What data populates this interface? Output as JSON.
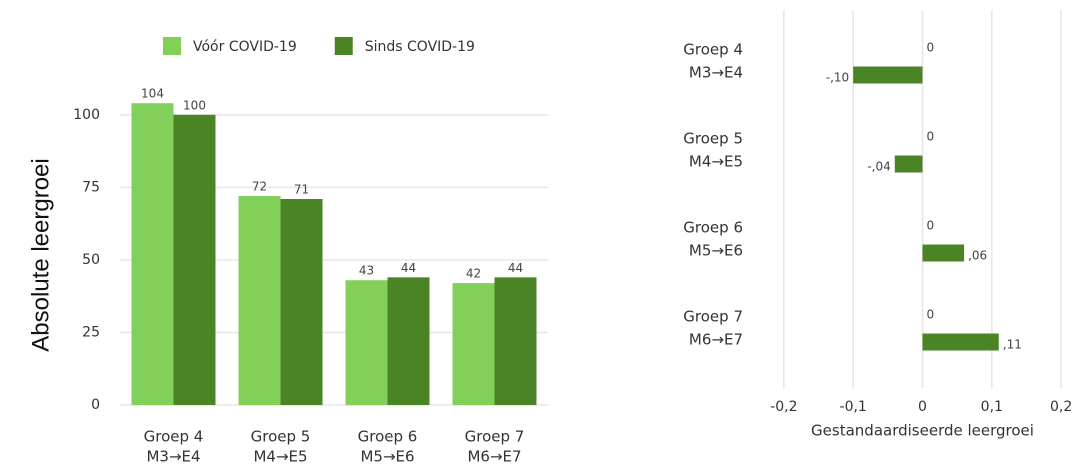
{
  "chart_data": [
    {
      "type": "bar",
      "categories": [
        [
          "Groep 4",
          "M3→E4"
        ],
        [
          "Groep 5",
          "M4→E5"
        ],
        [
          "Groep 6",
          "M5→E6"
        ],
        [
          "Groep 7",
          "M6→E7"
        ]
      ],
      "series": [
        {
          "name": "Vóór COVID-19",
          "color": "#82d05a",
          "values": [
            104,
            72,
            43,
            42
          ]
        },
        {
          "name": "Sinds COVID-19",
          "color": "#4a8425",
          "values": [
            100,
            71,
            44,
            44
          ]
        }
      ],
      "y_label": "Absolute leergroei",
      "ylim": [
        0,
        112
      ],
      "yticks": [
        0,
        25,
        50,
        75,
        100
      ],
      "grid": true,
      "legend": "top"
    },
    {
      "type": "hbar",
      "categories": [
        [
          "Groep 4",
          "M3→E4"
        ],
        [
          "Groep 5",
          "M4→E5"
        ],
        [
          "Groep 6",
          "M5→E6"
        ],
        [
          "Groep 7",
          "M6→E7"
        ]
      ],
      "series": [
        {
          "color": "#82d05a",
          "values": [
            0,
            0,
            0,
            0
          ]
        },
        {
          "color": "#4a8425",
          "values": [
            -0.1,
            -0.04,
            0.06,
            0.11
          ],
          "value_labels": [
            "-,10",
            "-,04",
            ",06",
            ",11"
          ]
        }
      ],
      "x_label": "Gestandaardiseerde leergroei",
      "xlim": [
        -0.22,
        0.22
      ],
      "xticks": [
        {
          "value": -0.2,
          "label": "-0,2"
        },
        {
          "value": -0.1,
          "label": "-0,1"
        },
        0,
        {
          "value": 0.1,
          "label": "0,1"
        },
        {
          "value": 0.2,
          "label": "0,2"
        }
      ],
      "grid": true
    }
  ]
}
